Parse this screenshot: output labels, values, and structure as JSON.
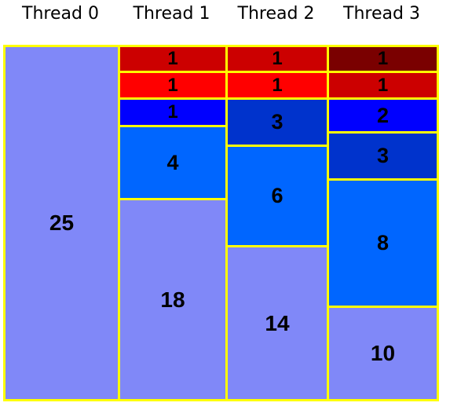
{
  "columns": [
    {
      "header": "Thread 0",
      "blocks": [
        {
          "value": "25",
          "color": "#8088f8"
        }
      ]
    },
    {
      "header": "Thread 1",
      "blocks": [
        {
          "value": "1",
          "color": "#cc0000"
        },
        {
          "value": "1",
          "color": "#ff0000"
        },
        {
          "value": "1",
          "color": "#0000ff"
        },
        {
          "value": "4",
          "color": "#0066ff"
        },
        {
          "value": "18",
          "color": "#8088f8"
        }
      ]
    },
    {
      "header": "Thread 2",
      "blocks": [
        {
          "value": "1",
          "color": "#cc0000"
        },
        {
          "value": "1",
          "color": "#ff0000"
        },
        {
          "value": "3",
          "color": "#0033cc"
        },
        {
          "value": "6",
          "color": "#0066ff"
        },
        {
          "value": "14",
          "color": "#8088f8"
        }
      ]
    },
    {
      "header": "Thread 3",
      "blocks": [
        {
          "value": "1",
          "color": "#7a0000"
        },
        {
          "value": "1",
          "color": "#cc0000"
        },
        {
          "value": "2",
          "color": "#0000ff"
        },
        {
          "value": "3",
          "color": "#0033cc"
        },
        {
          "value": "8",
          "color": "#0066ff"
        },
        {
          "value": "10",
          "color": "#8088f8"
        }
      ]
    }
  ],
  "colors": {
    "border": "#ffff00"
  }
}
